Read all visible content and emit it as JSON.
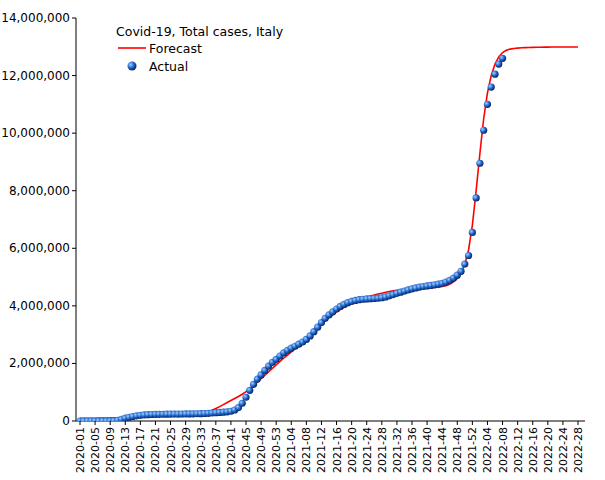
{
  "chart_data": {
    "type": "line",
    "title": "Covid-19, Total cases, Italy",
    "categories": [
      "2020-01",
      null,
      null,
      null,
      "2020-05",
      null,
      null,
      null,
      "2020-09",
      null,
      null,
      null,
      "2020-13",
      null,
      null,
      null,
      "2020-17",
      null,
      null,
      null,
      "2020-21",
      null,
      null,
      null,
      "2020-25",
      null,
      null,
      null,
      "2020-29",
      null,
      null,
      null,
      "2020-33",
      null,
      null,
      null,
      "2020-37",
      null,
      null,
      null,
      "2020-41",
      null,
      null,
      null,
      "2020-45",
      null,
      null,
      null,
      "2020-49",
      null,
      null,
      null,
      "2020-53",
      null,
      null,
      null,
      "2021-04",
      null,
      null,
      null,
      "2021-08",
      null,
      null,
      null,
      "2021-12",
      null,
      null,
      null,
      "2021-16",
      null,
      null,
      null,
      "2021-20",
      null,
      null,
      null,
      "2021-24",
      null,
      null,
      null,
      "2021-28",
      null,
      null,
      null,
      "2021-32",
      null,
      null,
      null,
      "2021-36",
      null,
      null,
      null,
      "2021-40",
      null,
      null,
      null,
      "2021-44",
      null,
      null,
      null,
      "2021-48",
      null,
      null,
      null,
      "2021-52",
      null,
      null,
      null,
      "2022-04",
      null,
      null,
      null,
      "2022-08",
      null,
      null,
      null,
      "2022-12",
      null,
      null,
      null,
      "2022-16",
      null,
      null,
      null,
      "2022-20",
      null,
      null,
      null,
      "2022-24",
      null,
      null,
      null,
      "2022-28"
    ],
    "series": [
      {
        "name": "Forecast",
        "type": "line",
        "color": "#ff0000",
        "line_style": "solid",
        "values": [
          90000,
          92000,
          94000,
          96000,
          98000,
          100000,
          102000,
          104000,
          106000,
          110000,
          114000,
          118000,
          122000,
          126000,
          130000,
          134000,
          138000,
          142000,
          146000,
          150000,
          154000,
          158000,
          162000,
          166000,
          170000,
          175000,
          180000,
          186000,
          193000,
          202000,
          214000,
          230000,
          252000,
          282000,
          322000,
          372000,
          432000,
          500000,
          570000,
          640000,
          710000,
          780000,
          850000,
          930000,
          1020000,
          1120000,
          1230000,
          1350000,
          1470000,
          1590000,
          1710000,
          1830000,
          1950000,
          2070000,
          2180000,
          2290000,
          2400000,
          2510000,
          2620000,
          2740000,
          2860000,
          2980000,
          3110000,
          3240000,
          3370000,
          3490000,
          3600000,
          3700000,
          3790000,
          3870000,
          3950000,
          4020000,
          4090000,
          4150000,
          4200000,
          4250000,
          4300000,
          4340000,
          4380000,
          4410000,
          4440000,
          4470000,
          4500000,
          4520000,
          4540000,
          4560000,
          4575000,
          4590000,
          4600000,
          4610000,
          4620000,
          4625000,
          4630000,
          4635000,
          4640000,
          4650000,
          4670000,
          4700000,
          4750000,
          4830000,
          4950000,
          5150000,
          5450000,
          5950000,
          6800000,
          8000000,
          9300000,
          10500000,
          11400000,
          12000000,
          12400000,
          12650000,
          12800000,
          12880000,
          12920000,
          12940000,
          12955000,
          12965000,
          12972000,
          12977000,
          12981000,
          12984000,
          12986000,
          12988000,
          12989000,
          12990000,
          12991000,
          12992000,
          12993000,
          12994000,
          12994000,
          12995000,
          12995000
        ]
      },
      {
        "name": "Actual",
        "type": "scatter",
        "color": "#1a5fc8",
        "marker": "circle",
        "values": [
          0,
          0,
          0,
          0,
          0,
          0,
          0,
          150,
          1128,
          7375,
          24747,
          59138,
          97689,
          128948,
          156363,
          178972,
          197675,
          210717,
          219070,
          225435,
          229858,
          232997,
          235278,
          237500,
          238833,
          240310,
          241611,
          243061,
          244752,
          246776,
          248803,
          251713,
          255278,
          260298,
          268218,
          277634,
          287753,
          298156,
          308104,
          319908,
          338398,
          381602,
          465726,
          616595,
          824879,
          1066401,
          1272352,
          1455022,
          1601554,
          1757394,
          1906377,
          2038759,
          2141201,
          2257866,
          2368733,
          2455185,
          2529070,
          2597446,
          2668266,
          2744640,
          2832162,
          2955434,
          3102057,
          3257747,
          3419616,
          3567000,
          3686707,
          3793033,
          3891063,
          3981512,
          4050708,
          4111210,
          4153374,
          4188190,
          4213055,
          4230153,
          4241760,
          4250902,
          4258456,
          4265714,
          4281000,
          4310000,
          4350000,
          4391000,
          4434000,
          4476000,
          4513000,
          4553000,
          4593000,
          4622000,
          4652000,
          4672000,
          4692000,
          4711000,
          4732000,
          4755000,
          4783000,
          4826000,
          4889000,
          4966000,
          5066000,
          5200000,
          5450000,
          5750000,
          6550000,
          7750000,
          8950000,
          10100000,
          11000000,
          11600000,
          12050000,
          12400000,
          12600000,
          null,
          null,
          null,
          null,
          null,
          null,
          null,
          null,
          null,
          null,
          null,
          null,
          null,
          null,
          null,
          null,
          null,
          null,
          null,
          null
        ]
      }
    ],
    "ylim": [
      0,
      14000000
    ],
    "yticks": [
      0,
      {
        "value": 2000000,
        "label": "2,000,000"
      },
      {
        "value": 4000000,
        "label": "4,000,000"
      },
      {
        "value": 6000000,
        "label": "6,000,000"
      },
      {
        "value": 8000000,
        "label": "8,000,000"
      },
      {
        "value": 10000000,
        "label": "10,000,000"
      },
      {
        "value": 12000000,
        "label": "12,000,000"
      },
      {
        "value": 14000000,
        "label": "14,000,000"
      }
    ],
    "grid": false,
    "legend": "upper left"
  }
}
